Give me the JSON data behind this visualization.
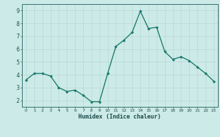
{
  "x": [
    0,
    1,
    2,
    3,
    4,
    5,
    6,
    7,
    8,
    9,
    10,
    11,
    12,
    13,
    14,
    15,
    16,
    17,
    18,
    19,
    20,
    21,
    22,
    23
  ],
  "y": [
    3.6,
    4.1,
    4.1,
    3.9,
    3.0,
    2.7,
    2.8,
    2.4,
    1.9,
    1.9,
    4.1,
    6.2,
    6.7,
    7.3,
    8.95,
    7.6,
    7.7,
    5.8,
    5.2,
    5.4,
    5.1,
    4.6,
    4.1,
    3.5
  ],
  "xlabel": "Humidex (Indice chaleur)",
  "xlim": [
    -0.5,
    23.5
  ],
  "ylim": [
    1.5,
    9.5
  ],
  "yticks": [
    2,
    3,
    4,
    5,
    6,
    7,
    8,
    9
  ],
  "xticks": [
    0,
    1,
    2,
    3,
    4,
    5,
    6,
    7,
    8,
    9,
    10,
    11,
    12,
    13,
    14,
    15,
    16,
    17,
    18,
    19,
    20,
    21,
    22,
    23
  ],
  "line_color": "#1a7a6e",
  "marker": "D",
  "marker_size": 1.8,
  "bg_color": "#cceae7",
  "grid_color": "#b8d8d5",
  "spine_color": "#2e6b6b",
  "xlabel_color": "#1a4a4a",
  "tick_color": "#1a4a4a",
  "line_width": 1.0
}
